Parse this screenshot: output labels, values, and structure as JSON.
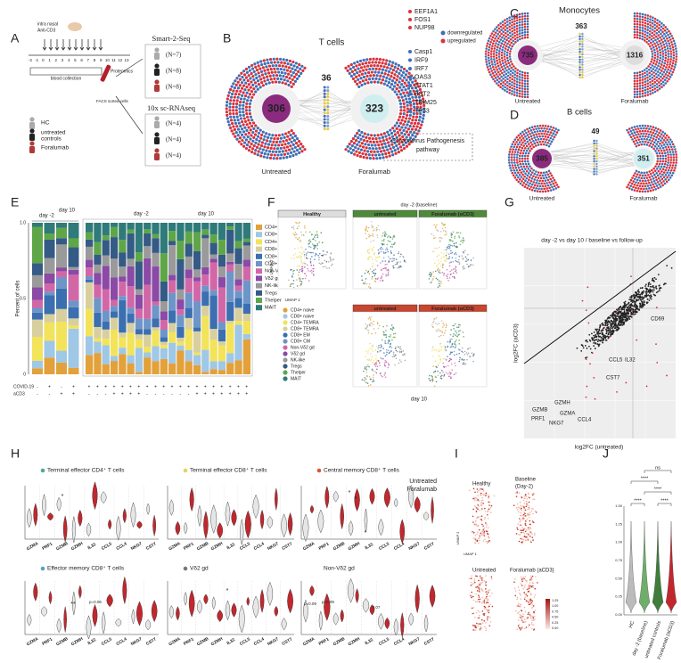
{
  "panel_a": {
    "letter": "A",
    "intranasal": "intra nasal",
    "drug": "Anti-CD3",
    "days": [
      "-2",
      "-1",
      "0",
      "1",
      "2",
      "3",
      "4",
      "5",
      "6",
      "7",
      "8",
      "9",
      "10",
      "11",
      "12",
      "13"
    ],
    "blood": "blood collection",
    "proteomics": "Proteomics",
    "facs": "FACS sorted cells",
    "hc": "HC",
    "untreated": "untreated",
    "controls": "controls",
    "foralumab": "Foralumab",
    "smart": "Smart-2-Seq",
    "smart_n": [
      "(N=7)",
      "(N=8)",
      "(N=8)"
    ],
    "tenx": "10x sc-RNAseq",
    "tenx_n": [
      "(N=4)",
      "(N=4)",
      "(N=4)"
    ]
  },
  "panel_b": {
    "letter": "B",
    "title": "T cells",
    "left": "306",
    "middle": "36",
    "right": "323",
    "left_label": "Untreated",
    "right_label": "Foralumab",
    "up_genes": [
      "EEF1A1",
      "FOS1",
      "NUP98"
    ],
    "down_genes": [
      "Casp1",
      "IRF9",
      "IRF7",
      "OAS3",
      "STAT1",
      "BST2",
      "TRIM25",
      "TP53"
    ],
    "legend_down": "downregulated",
    "legend_up": "upregulated",
    "pathway": "Coronavirus Pathogenesis",
    "pathway2": "pathway"
  },
  "panel_c": {
    "letter": "C",
    "title": "Monocytes",
    "left": "735",
    "middle": "363",
    "right": "1316",
    "left_label": "Untreated",
    "right_label": "Foralumab"
  },
  "panel_d": {
    "letter": "D",
    "title": "B cells",
    "left": "385",
    "middle": "49",
    "right": "351",
    "left_label": "Untreated",
    "right_label": "Foralumab"
  },
  "panel_e": {
    "letter": "E",
    "ylabel": "Percent of cells",
    "yticks": [
      "0",
      "0.5",
      "1.0"
    ],
    "day_m2": "day -2",
    "day_10": "day 10",
    "legend": [
      "CD4+ naive",
      "CD8+ naive",
      "CD4+ TEMRA",
      "CD8+ TEMRA",
      "CD8+ EM",
      "CD8+ CM",
      "Non-Vδ2 gd",
      "Vδ2 gd",
      "NK-like",
      "Tregs",
      "Thelper",
      "MAIT"
    ],
    "covid": "COVID-19",
    "acd3": "aCD3",
    "covid_marks": [
      "-",
      "+",
      "-",
      "+",
      "+",
      "+",
      "+",
      "+",
      "+",
      "+",
      "+",
      "+",
      "+",
      "+",
      "+",
      "+",
      "+",
      "+",
      "+",
      "+",
      "+",
      "+",
      "+",
      "+"
    ],
    "acd3_marks": [
      "-",
      "-",
      "+",
      "+",
      "-",
      "-",
      "-",
      "+",
      "+",
      "+",
      "+",
      "-",
      "-",
      "-",
      "-",
      "-",
      "-",
      "+",
      "+",
      "+",
      "+",
      "+",
      "+",
      "+"
    ]
  },
  "panel_f": {
    "letter": "F",
    "healthy": "Healthy",
    "untreated": "untreated",
    "foralumab": "Foralumab (αCD3)",
    "baseline": "day -2 (baseline)",
    "day10": "day 10",
    "umap1": "UMAP 1",
    "umap2": "UMAP 2",
    "legend": [
      "CD4+ naive",
      "CD8+ naive",
      "CD4+ TEMRA",
      "CD8+ TEMRA",
      "CD8+ EM",
      "CD8+ CM",
      "Non-Vδ2 gd",
      "Vδ2 gd",
      "NK-like",
      "Tregs",
      "Thelper",
      "MAIT"
    ]
  },
  "panel_g": {
    "letter": "G",
    "title": "day -2 vs day 10 / baseline vs follow-up",
    "xlabel": "log2FC (untreated)",
    "ylabel": "log2FC (aCD3)",
    "genes": [
      "CD69",
      "CCL5",
      "IL32",
      "CST7",
      "GZMB",
      "GZMH",
      "GZMA",
      "PRF1",
      "NKG7",
      "CCL4"
    ]
  },
  "panel_h": {
    "letter": "H",
    "titles": [
      "Terminal effector CD4⁺ T cells",
      "Terminal effector CD8⁺ T cells",
      "Central memory CD8⁺ T cells",
      "Effector memory CD8⁺ T cells",
      "Vδ2 gd",
      "Non-Vδ2 gd"
    ],
    "genes": [
      "GZMA",
      "PRF1",
      "GZMB",
      "GZMH",
      "IL32",
      "CCL5",
      "CCL4",
      "NKG7",
      "CST7"
    ],
    "legend_untreated": "Untreated",
    "legend_foralumab": "Foralumab",
    "annotations": [
      "*",
      "*",
      "*",
      "*",
      "**",
      "p=0.06",
      "*",
      "p=0.09",
      "p=0.09",
      "0.07"
    ]
  },
  "panel_i": {
    "letter": "I",
    "healthy": "Healthy",
    "baseline": "Baseline",
    "baseline2": "(Day-2)",
    "untreated": "Untreated",
    "foralumab": "Foralumab (aCD3)",
    "umap1": "UMAP 1",
    "umap2": "UMAP 2",
    "colorbar": [
      "1.25",
      "1.00",
      "0.75",
      "0.50",
      "0.25",
      "0.00"
    ]
  },
  "panel_j": {
    "letter": "J",
    "ns": "ns",
    "stars": "****",
    "yticks": [
      "1.50",
      "1.25",
      "1.00",
      "0.75",
      "0.50",
      "0.25",
      "0.00"
    ],
    "groups": [
      "HC",
      "day -2 (baseline)",
      "untreated controls",
      "Foralumab (aCD3)"
    ]
  }
}
